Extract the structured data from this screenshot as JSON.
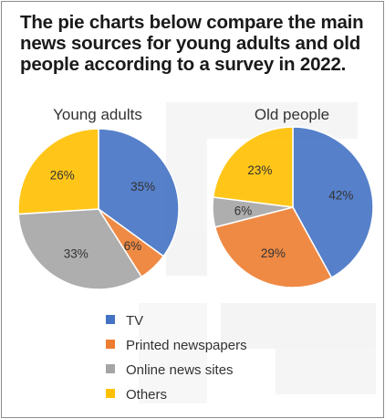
{
  "title": "The pie charts below compare the main news sources for young adults and old people according to a survey in 2022.",
  "chart_data": [
    {
      "type": "pie",
      "title": "Young adults",
      "categories": [
        "TV",
        "Printed newspapers",
        "Online news sites",
        "Others"
      ],
      "values": [
        35,
        6,
        33,
        26
      ],
      "labels": [
        "35%",
        "6%",
        "33%",
        "26%"
      ]
    },
    {
      "type": "pie",
      "title": "Old people",
      "categories": [
        "TV",
        "Printed newspapers",
        "Online news sites",
        "Others"
      ],
      "values": [
        42,
        29,
        6,
        23
      ],
      "labels": [
        "42%",
        "29%",
        "6%",
        "23%"
      ]
    }
  ],
  "legend": {
    "placement": "bottom",
    "items": [
      {
        "label": "TV",
        "color": "#4472c4"
      },
      {
        "label": "Printed newspapers",
        "color": "#ed7d31"
      },
      {
        "label": "Online news sites",
        "color": "#a5a5a5"
      },
      {
        "label": "Others",
        "color": "#ffc000"
      }
    ]
  },
  "colors": {
    "TV": "#4472c4",
    "Printed newspapers": "#ed7d31",
    "Online news sites": "#a5a5a5",
    "Others": "#ffc000",
    "watermark": "#ececec"
  }
}
